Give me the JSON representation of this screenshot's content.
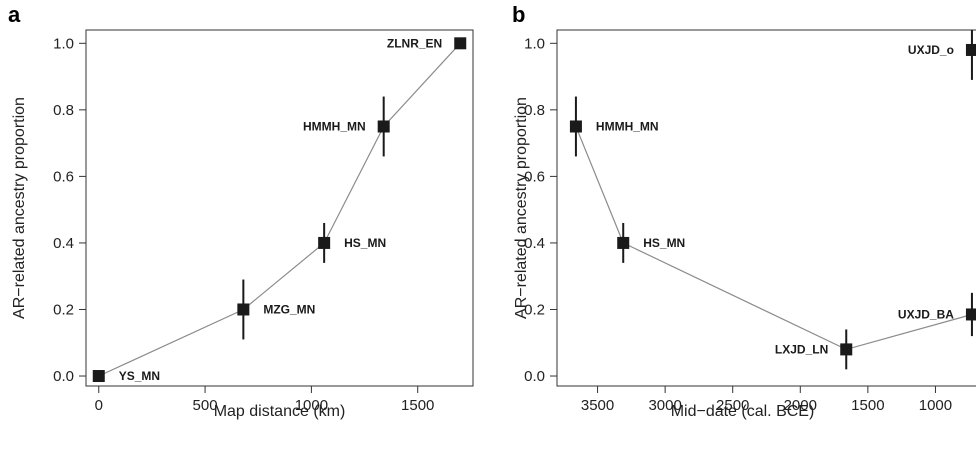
{
  "chart_data": [
    {
      "panel": "a",
      "type": "line",
      "xlabel": "Map distance (km)",
      "ylabel": "AR−related ancestry proportion",
      "xlim": [
        -60,
        1760
      ],
      "ylim": [
        -0.03,
        1.04
      ],
      "xticks": [
        0,
        500,
        1000,
        1500
      ],
      "yticks": [
        0.0,
        0.2,
        0.4,
        0.6,
        0.8,
        1.0
      ],
      "ytick_labels": [
        "0.0",
        "0.2",
        "0.4",
        "0.6",
        "0.8",
        "1.0"
      ],
      "grid": false,
      "points": [
        {
          "label": "YS_MN",
          "x": 0,
          "y": 0.0,
          "err_low": 0.0,
          "err_high": 0.0,
          "label_side": "right"
        },
        {
          "label": "MZG_MN",
          "x": 680,
          "y": 0.2,
          "err_low": 0.11,
          "err_high": 0.29,
          "label_side": "right"
        },
        {
          "label": "HS_MN",
          "x": 1060,
          "y": 0.4,
          "err_low": 0.34,
          "err_high": 0.46,
          "label_side": "right"
        },
        {
          "label": "HMMH_MN",
          "x": 1340,
          "y": 0.75,
          "err_low": 0.66,
          "err_high": 0.84,
          "label_side": "left"
        },
        {
          "label": "ZLNR_EN",
          "x": 1700,
          "y": 1.0,
          "err_low": 1.0,
          "err_high": 1.0,
          "label_side": "left"
        }
      ]
    },
    {
      "panel": "b",
      "type": "line",
      "xlabel": "Mid−date (cal. BCE)",
      "ylabel": "AR−related ancestry proportion",
      "x_reversed": true,
      "xlim": [
        3800,
        700
      ],
      "ylim": [
        -0.03,
        1.04
      ],
      "xticks": [
        3500,
        3000,
        2500,
        2000,
        1500,
        1000
      ],
      "yticks": [
        0.0,
        0.2,
        0.4,
        0.6,
        0.8,
        1.0
      ],
      "ytick_labels": [
        "0.0",
        "0.2",
        "0.4",
        "0.6",
        "0.8",
        "1.0"
      ],
      "grid": false,
      "points": [
        {
          "label": "HMMH_MN",
          "x": 3660,
          "y": 0.75,
          "err_low": 0.66,
          "err_high": 0.84,
          "label_side": "right"
        },
        {
          "label": "HS_MN",
          "x": 3310,
          "y": 0.4,
          "err_low": 0.34,
          "err_high": 0.46,
          "label_side": "right"
        },
        {
          "label": "LXJD_LN",
          "x": 1660,
          "y": 0.08,
          "err_low": 0.02,
          "err_high": 0.14,
          "label_side": "left"
        },
        {
          "label": "UXJD_BA",
          "x": 730,
          "y": 0.185,
          "err_low": 0.12,
          "err_high": 0.25,
          "label_side": "left"
        }
      ],
      "extra_points": [
        {
          "label": "UXJD_o",
          "x": 730,
          "y": 0.98,
          "err_low": 0.89,
          "err_high": 1.04,
          "label_side": "left"
        }
      ]
    }
  ]
}
